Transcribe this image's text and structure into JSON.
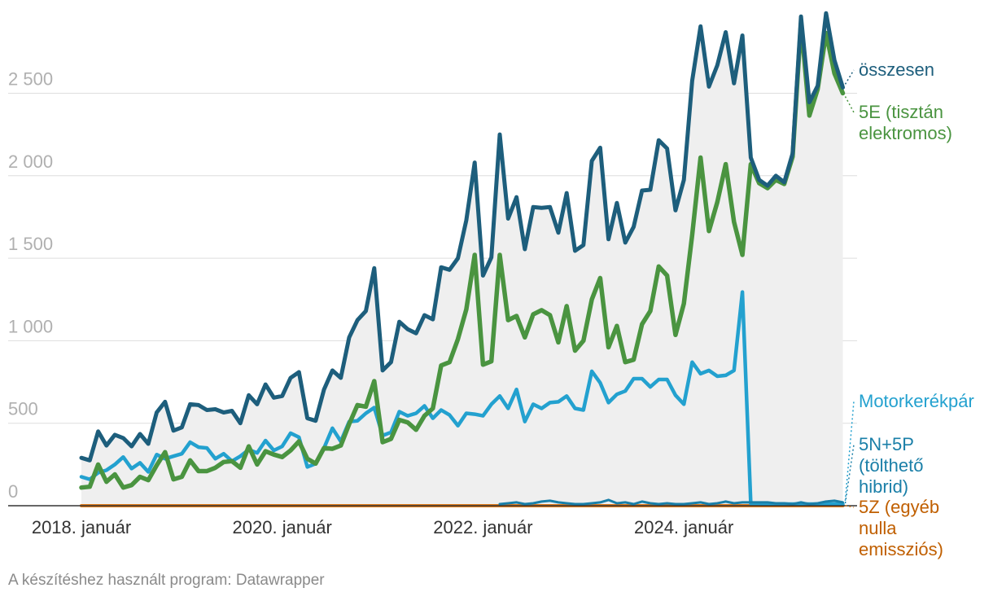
{
  "chart_data": {
    "type": "line",
    "y_ticks": [
      0,
      500,
      1000,
      1500,
      2000,
      2500
    ],
    "y_tick_labels": [
      "0",
      "500",
      "1 000",
      "1 500",
      "2 000",
      "2 500"
    ],
    "ylim": [
      0,
      2900
    ],
    "x_ticks": [
      {
        "index": 0,
        "label": "2018. január"
      },
      {
        "index": 24,
        "label": "2020. január"
      },
      {
        "index": 48,
        "label": "2022. január"
      },
      {
        "index": 72,
        "label": "2024. január"
      }
    ],
    "x_start": "2018-01",
    "grid": true,
    "series": [
      {
        "name": "összesen",
        "color": "#1d5e7c",
        "label_lines": [
          "összesen"
        ],
        "values": [
          290,
          275,
          450,
          365,
          430,
          410,
          360,
          435,
          375,
          565,
          630,
          455,
          475,
          615,
          610,
          580,
          585,
          565,
          575,
          500,
          670,
          615,
          735,
          655,
          665,
          775,
          810,
          530,
          515,
          705,
          820,
          775,
          1020,
          1125,
          1180,
          1440,
          820,
          870,
          1115,
          1070,
          1045,
          1155,
          1130,
          1445,
          1430,
          1500,
          1730,
          2080,
          1395,
          1505,
          2250,
          1740,
          1870,
          1555,
          1810,
          1805,
          1810,
          1655,
          1895,
          1545,
          1580,
          2090,
          2170,
          1615,
          1835,
          1595,
          1690,
          1910,
          1915,
          2215,
          2165,
          1790,
          1975,
          2575,
          2905,
          2540,
          2670,
          2870,
          2560,
          2850,
          2110,
          1975,
          1940,
          2000,
          1960,
          2135,
          2965,
          2445,
          2545,
          2985,
          2700,
          2535
        ]
      },
      {
        "name": "5E (tisztán elektromos)",
        "color": "#4a9440",
        "label_lines": [
          "5E (tisztán",
          "elektromos)"
        ],
        "values": [
          110,
          115,
          250,
          145,
          190,
          110,
          125,
          175,
          155,
          245,
          325,
          160,
          175,
          275,
          210,
          210,
          230,
          265,
          270,
          230,
          360,
          250,
          330,
          310,
          295,
          335,
          390,
          285,
          255,
          350,
          345,
          365,
          495,
          610,
          600,
          755,
          385,
          405,
          520,
          505,
          460,
          545,
          590,
          850,
          870,
          1010,
          1190,
          1520,
          855,
          875,
          1520,
          1125,
          1150,
          1020,
          1160,
          1185,
          1155,
          990,
          1210,
          940,
          1000,
          1250,
          1380,
          960,
          1090,
          870,
          885,
          1100,
          1180,
          1450,
          1395,
          1035,
          1225,
          1640,
          2110,
          1665,
          1840,
          2070,
          1720,
          1520,
          2070,
          1955,
          1925,
          1975,
          1950,
          2115,
          2925,
          2365,
          2525,
          2865,
          2620,
          2500
        ]
      },
      {
        "name": "Motorkerékpár",
        "color": "#23a1cf",
        "label_lines": [
          "Motorkerékpár"
        ],
        "values": [
          175,
          160,
          200,
          215,
          250,
          295,
          225,
          260,
          205,
          310,
          285,
          300,
          315,
          385,
          355,
          350,
          285,
          315,
          270,
          300,
          340,
          320,
          395,
          335,
          360,
          440,
          415,
          235,
          255,
          350,
          470,
          390,
          510,
          515,
          560,
          595,
          425,
          445,
          570,
          545,
          560,
          605,
          530,
          580,
          550,
          485,
          560,
          555,
          545,
          615,
          665,
          590,
          705,
          510,
          615,
          590,
          625,
          630,
          665,
          590,
          580,
          815,
          745,
          625,
          675,
          695,
          770,
          770,
          720,
          765,
          765,
          670,
          615,
          870,
          800,
          820,
          785,
          790,
          820,
          1295,
          15,
          15,
          10,
          10,
          10,
          10,
          10,
          10,
          10,
          10,
          10,
          10
        ]
      },
      {
        "name": "5N+5P (tölthető hibrid)",
        "color": "#1a7fa8",
        "label_lines": [
          "5N+5P",
          "(tölthető",
          "hibrid)"
        ],
        "start_index": 50,
        "values": [
          10,
          15,
          20,
          10,
          15,
          25,
          30,
          20,
          15,
          10,
          10,
          15,
          20,
          35,
          15,
          20,
          10,
          25,
          15,
          10,
          15,
          10,
          10,
          15,
          20,
          10,
          15,
          25,
          15,
          20,
          20,
          20,
          20,
          15,
          15,
          10,
          20,
          10,
          15,
          25,
          30,
          20
        ]
      },
      {
        "name": "5Z (egyéb nulla emissziós)",
        "color": "#e07b1a",
        "label_color": "#c05f00",
        "label_lines": [
          "5Z (egyéb",
          "nulla",
          "emissziós)"
        ],
        "values": [
          0
        ]
      }
    ]
  },
  "credit": "A készítéshez használt program: Datawrapper"
}
